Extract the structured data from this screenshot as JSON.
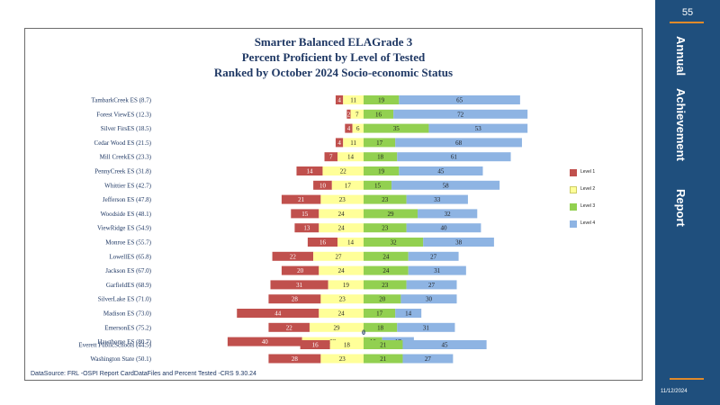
{
  "slide": {
    "page_number": "55",
    "sidebar_words": [
      "Annual",
      "Achievement",
      "Report"
    ],
    "date": "11/12/2024"
  },
  "colors": {
    "sidebar": "#1f4f7d",
    "accent": "#e08a2a",
    "level1": "#c0504d",
    "level2": "#ffff99",
    "level3": "#92d050",
    "level4": "#8eb4e3"
  },
  "chart_data": {
    "type": "bar",
    "orientation": "horizontal",
    "stacking": "diverging",
    "title_lines": [
      "Smarter Balanced ELAGrade 3",
      "Percent Proficient by Level of Tested",
      "Ranked by October 2024 Socio-economic  Status"
    ],
    "center_label": "0",
    "source": "DataSource:  FRL  -OSPI  Report CardDataFiles  and  Percent  Tested     -CRS  9.30.24",
    "legend_position": "right",
    "series_names": [
      "Level 1",
      "Level 2",
      "Level 3",
      "Level 4"
    ],
    "rows": [
      {
        "label": "TambarkCreek ES (8.7)",
        "values": [
          4,
          11,
          19,
          65
        ]
      },
      {
        "label": "Forest ViewES (12.3)",
        "values": [
          2,
          7,
          16,
          72
        ]
      },
      {
        "label": "Silver FirsES (18.5)",
        "values": [
          4,
          6,
          35,
          53
        ]
      },
      {
        "label": "Cedar Wood ES (21.5)",
        "values": [
          4,
          11,
          17,
          68
        ]
      },
      {
        "label": "Mill CreekES (23.3)",
        "values": [
          7,
          14,
          18,
          61
        ]
      },
      {
        "label": "PennyCreek ES (31.8)",
        "values": [
          14,
          22,
          19,
          45
        ]
      },
      {
        "label": "Whittier ES (42.7)",
        "values": [
          10,
          17,
          15,
          58
        ]
      },
      {
        "label": "Jefferson ES (47.8)",
        "values": [
          21,
          23,
          23,
          33
        ]
      },
      {
        "label": "Woodside ES (48.1)",
        "values": [
          15,
          24,
          29,
          32
        ]
      },
      {
        "label": "ViewRidge ES (54.9)",
        "values": [
          13,
          24,
          23,
          40
        ]
      },
      {
        "label": "Monroe  ES (55.7)",
        "values": [
          16,
          14,
          32,
          38
        ]
      },
      {
        "label": "LowellES (65.8)",
        "values": [
          22,
          27,
          24,
          27
        ]
      },
      {
        "label": "Jackson ES (67.0)",
        "values": [
          20,
          24,
          24,
          31
        ]
      },
      {
        "label": "GarfieldES (68.9)",
        "values": [
          31,
          19,
          23,
          27
        ]
      },
      {
        "label": "SilverLake ES (71.0)",
        "values": [
          28,
          23,
          20,
          30
        ]
      },
      {
        "label": "Madison ES (73.0)",
        "values": [
          44,
          24,
          17,
          14
        ]
      },
      {
        "label": "EmersonES (75.2)",
        "values": [
          22,
          29,
          18,
          31
        ]
      },
      {
        "label": "Hawthorne ES (80.7)",
        "values": [
          40,
          33,
          10,
          17
        ]
      },
      {
        "label": "Everett PublicSchools (44.5)",
        "values": [
          16,
          18,
          21,
          45
        ]
      },
      {
        "label": "Washington State (50.1)",
        "values": [
          28,
          23,
          21,
          27
        ]
      }
    ]
  }
}
